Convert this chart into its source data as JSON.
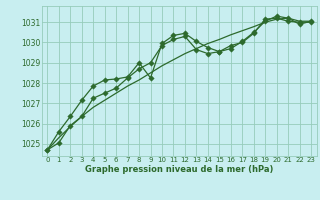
{
  "title": "Graphe pression niveau de la mer (hPa)",
  "bg_color": "#c8eef0",
  "grid_color": "#96ccbb",
  "line_color": "#2d6a2d",
  "xlim": [
    -0.5,
    23.5
  ],
  "ylim": [
    1024.4,
    1031.8
  ],
  "yticks": [
    1025,
    1026,
    1027,
    1028,
    1029,
    1030,
    1031
  ],
  "xticks": [
    0,
    1,
    2,
    3,
    4,
    5,
    6,
    7,
    8,
    9,
    10,
    11,
    12,
    13,
    14,
    15,
    16,
    17,
    18,
    19,
    20,
    21,
    22,
    23
  ],
  "series1_x": [
    0,
    1,
    2,
    3,
    4,
    5,
    6,
    7,
    8,
    9,
    10,
    11,
    12,
    13,
    14,
    15,
    16,
    17,
    18,
    19,
    20,
    21,
    22,
    23
  ],
  "series1_y": [
    1024.7,
    1025.3,
    1025.85,
    1026.35,
    1026.8,
    1027.15,
    1027.5,
    1027.85,
    1028.15,
    1028.5,
    1028.85,
    1029.15,
    1029.45,
    1029.7,
    1029.95,
    1030.15,
    1030.38,
    1030.58,
    1030.78,
    1031.0,
    1031.15,
    1031.2,
    1031.05,
    1031.05
  ],
  "series2_x": [
    0,
    1,
    2,
    3,
    4,
    5,
    6,
    7,
    8,
    9,
    10,
    11,
    12,
    13,
    14,
    15,
    16,
    17,
    18,
    19,
    20,
    21,
    22,
    23
  ],
  "series2_y": [
    1024.7,
    1025.05,
    1025.9,
    1026.35,
    1027.25,
    1027.5,
    1027.75,
    1028.25,
    1028.7,
    1029.0,
    1029.85,
    1030.15,
    1030.3,
    1029.65,
    1029.45,
    1029.55,
    1029.7,
    1030.05,
    1030.5,
    1031.05,
    1031.3,
    1031.2,
    1030.9,
    1031.05
  ],
  "series3_x": [
    0,
    1,
    2,
    3,
    4,
    5,
    6,
    7,
    8,
    9,
    10,
    11,
    12,
    13,
    14,
    15,
    16,
    17,
    18,
    19,
    20,
    21,
    22,
    23
  ],
  "series3_y": [
    1024.7,
    1025.6,
    1026.35,
    1027.15,
    1027.85,
    1028.15,
    1028.2,
    1028.3,
    1029.0,
    1028.25,
    1029.95,
    1030.35,
    1030.45,
    1030.05,
    1029.75,
    1029.55,
    1029.85,
    1030.0,
    1030.45,
    1031.15,
    1031.2,
    1031.05,
    1031.0,
    1031.0
  ]
}
